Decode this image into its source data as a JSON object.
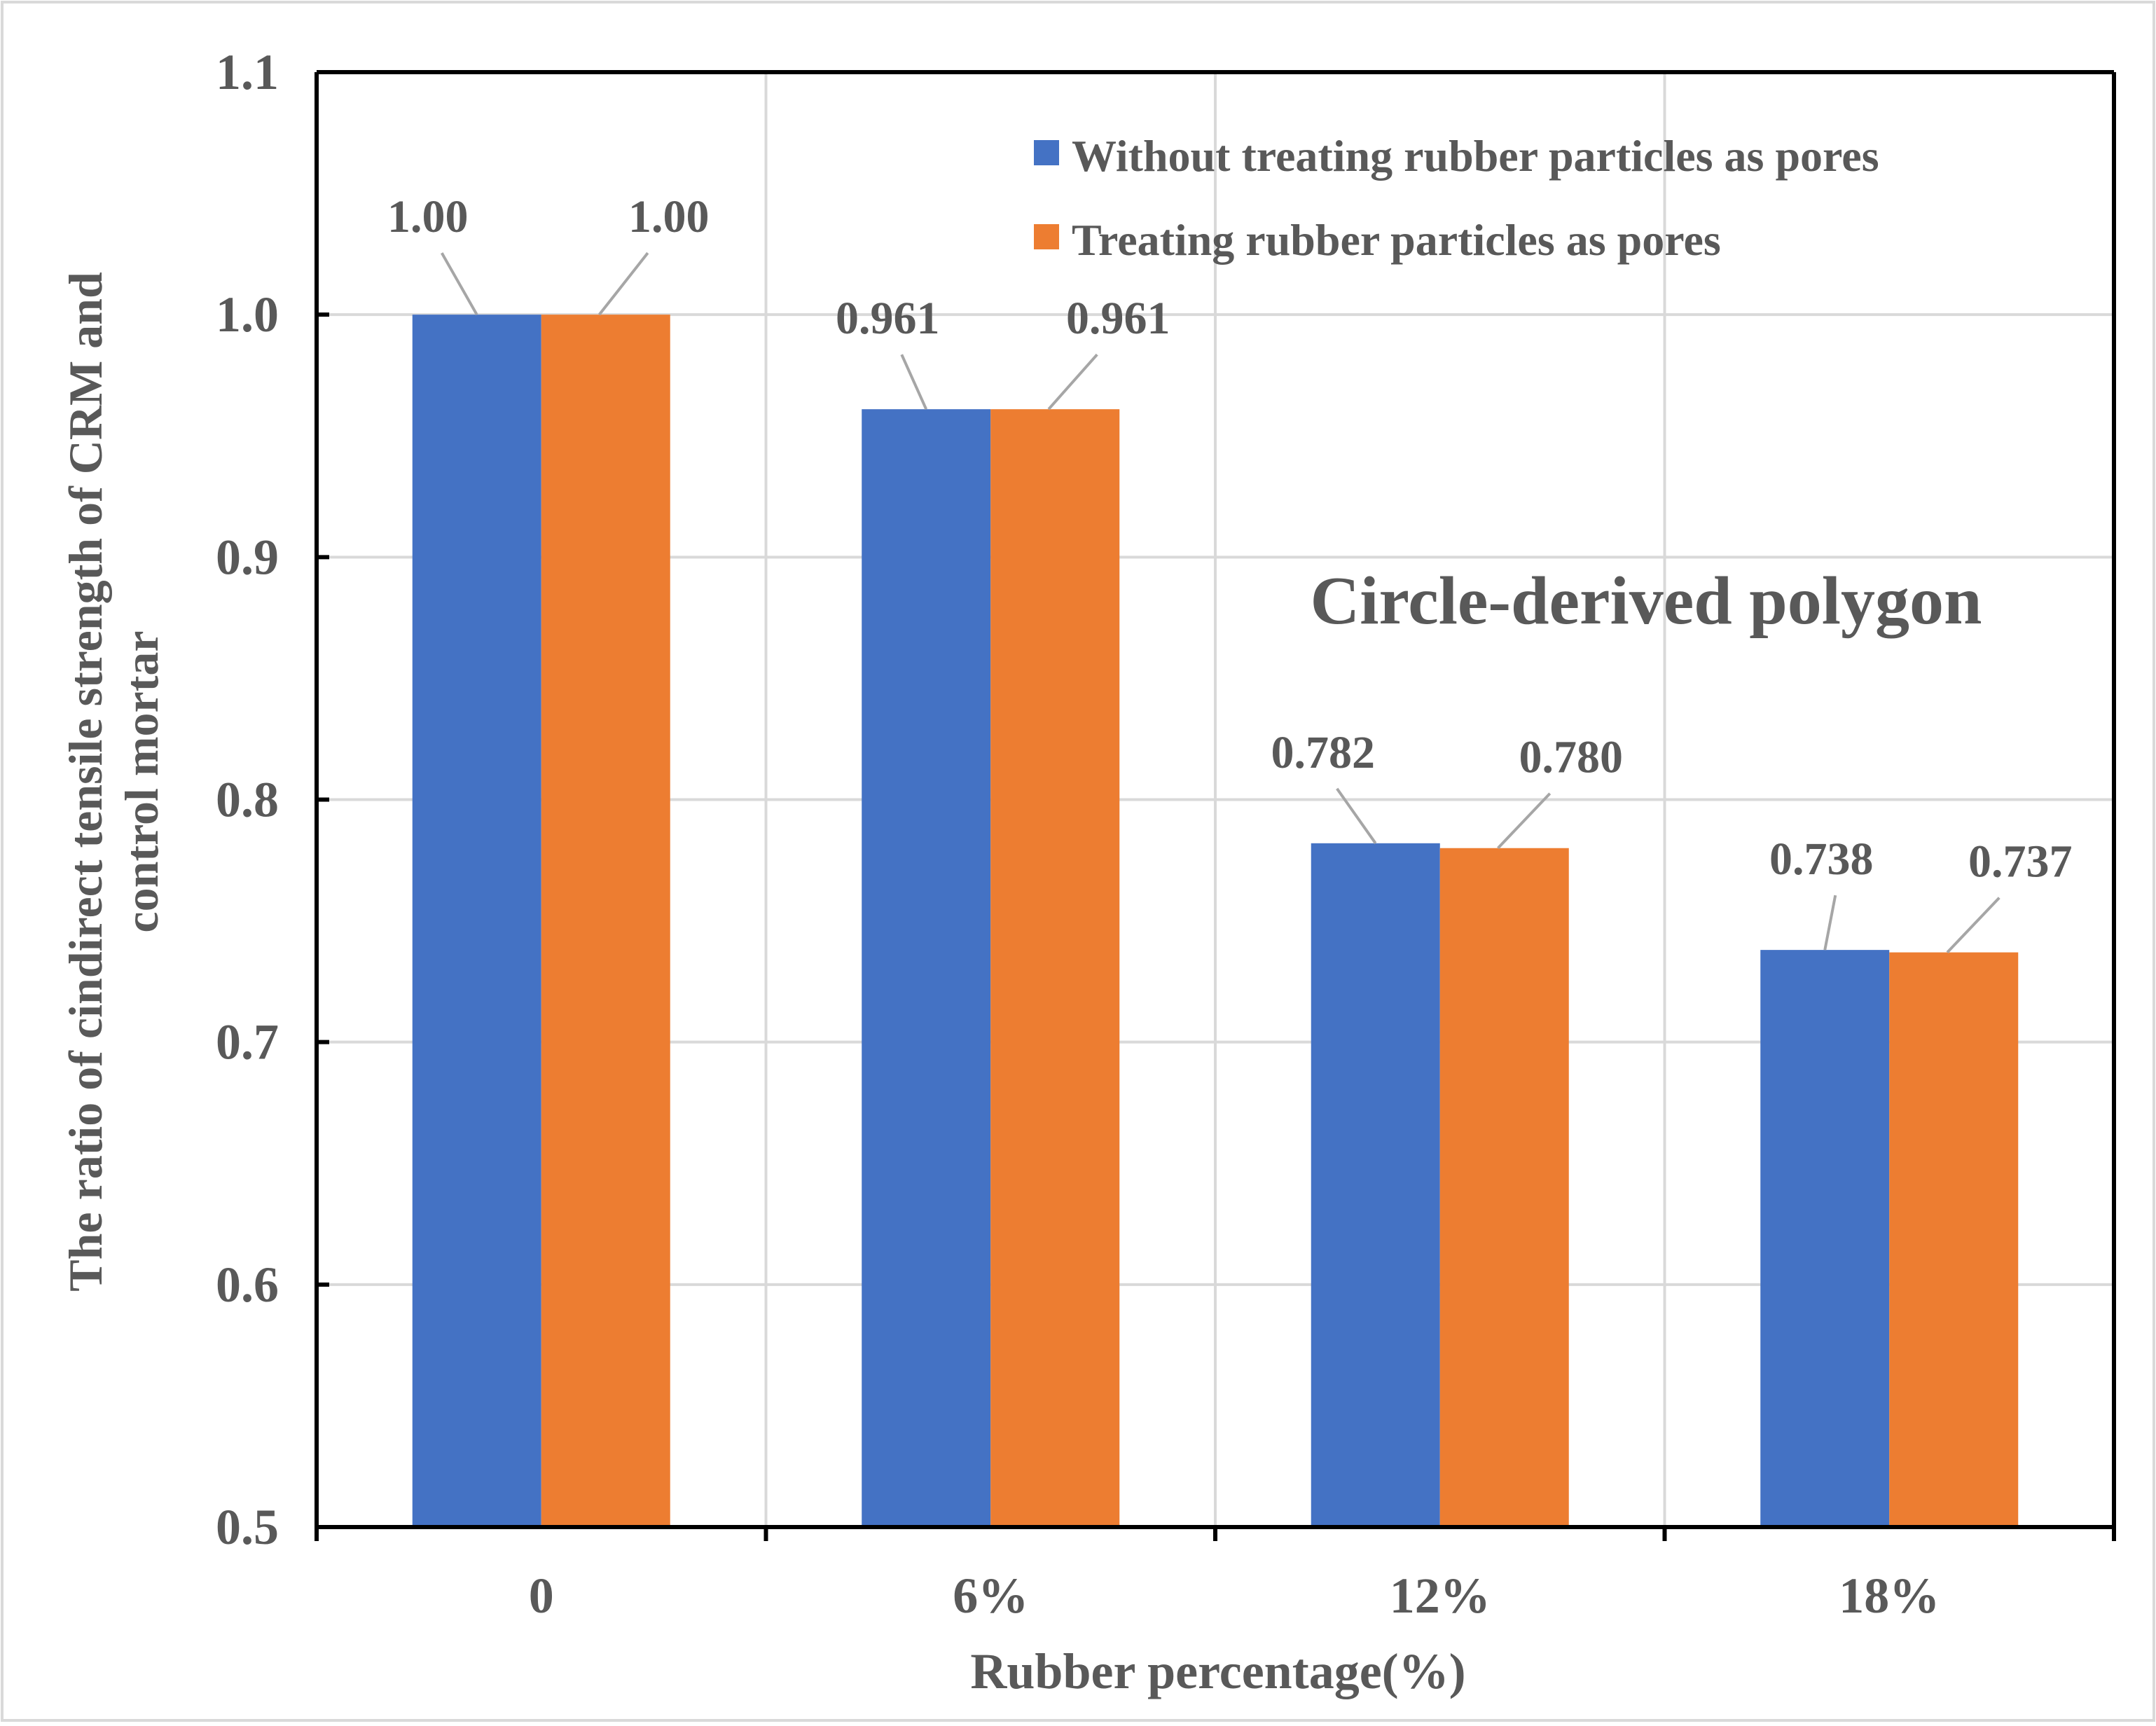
{
  "chart_data": {
    "type": "bar",
    "title": "Circle-derived polygon",
    "xlabel": "Rubber percentage(%)",
    "ylabel_lines": [
      "The ratio of cindirect tensile strength of CRM and",
      "control mortar"
    ],
    "categories": [
      "0",
      "6%",
      "12%",
      "18%"
    ],
    "ylim": [
      0.5,
      1.1
    ],
    "yticks": [
      "0.5",
      "0.6",
      "0.7",
      "0.8",
      "0.9",
      "1.0",
      "1.1"
    ],
    "grid": true,
    "legend_position": "top-right",
    "series": [
      {
        "name": "Without treating rubber particles as pores",
        "color": "#4472C4",
        "values": [
          1.0,
          0.961,
          0.782,
          0.738
        ],
        "labels": [
          "1.00",
          "0.961",
          "0.782",
          "0.738"
        ]
      },
      {
        "name": "Treating rubber particles as pores",
        "color": "#ED7D31",
        "values": [
          1.0,
          0.961,
          0.78,
          0.737
        ],
        "labels": [
          "1.00",
          "0.961",
          "0.780",
          "0.737"
        ]
      }
    ]
  },
  "colors": {
    "grid": "#d9d9d9",
    "axis": "#000000",
    "text": "#595959",
    "leader": "#a6a6a6"
  }
}
